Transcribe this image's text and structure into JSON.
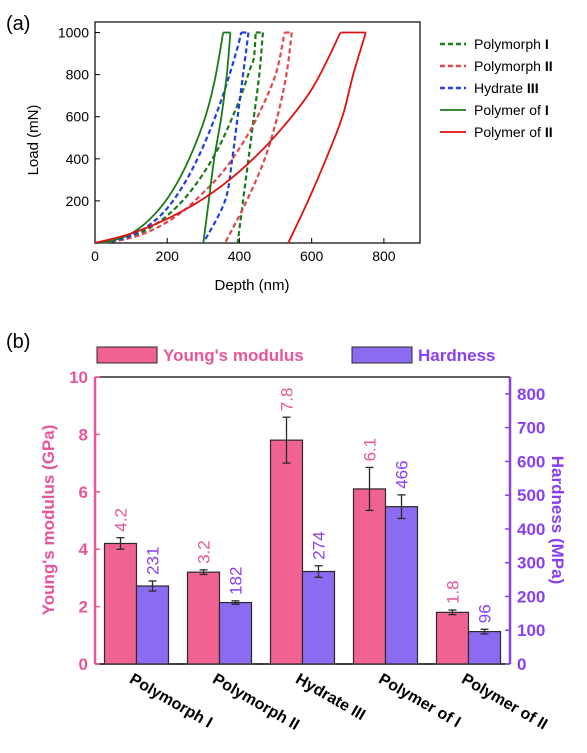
{
  "chart_data": [
    {
      "panel_label": "(a)",
      "type": "line",
      "xlabel": "Depth (nm)",
      "ylabel": "Load (mN)",
      "xlim": [
        0,
        900
      ],
      "ylim": [
        0,
        1050
      ],
      "xticks": [
        0,
        200,
        400,
        600,
        800
      ],
      "yticks": [
        200,
        400,
        600,
        800,
        1000
      ],
      "grid": false,
      "legend_position": "right",
      "series": [
        {
          "name": "Polymorph",
          "name_suffix": "I",
          "color": "#1a7a1a",
          "dash": "dashed",
          "loading": [
            [
              0,
              0
            ],
            [
              50,
              8
            ],
            [
              100,
              30
            ],
            [
              150,
              70
            ],
            [
              200,
              130
            ],
            [
              250,
              215
            ],
            [
              300,
              330
            ],
            [
              350,
              480
            ],
            [
              400,
              680
            ],
            [
              430,
              830
            ],
            [
              440,
              880
            ],
            [
              445,
              1000
            ]
          ],
          "hold": [
            [
              445,
              1000
            ],
            [
              465,
              1000
            ]
          ],
          "unloading": [
            [
              465,
              1000
            ],
            [
              455,
              800
            ],
            [
              440,
              600
            ],
            [
              425,
              400
            ],
            [
              410,
              200
            ],
            [
              395,
              0
            ]
          ]
        },
        {
          "name": "Polymorph",
          "name_suffix": "II",
          "color": "#e0474c",
          "dash": "dashed",
          "loading": [
            [
              0,
              0
            ],
            [
              50,
              8
            ],
            [
              100,
              25
            ],
            [
              150,
              55
            ],
            [
              200,
              100
            ],
            [
              250,
              160
            ],
            [
              300,
              240
            ],
            [
              350,
              330
            ],
            [
              400,
              450
            ],
            [
              450,
              600
            ],
            [
              500,
              800
            ],
            [
              525,
              1000
            ]
          ],
          "hold": [
            [
              525,
              1000
            ],
            [
              545,
              1000
            ]
          ],
          "unloading": [
            [
              545,
              1000
            ],
            [
              530,
              800
            ],
            [
              505,
              600
            ],
            [
              470,
              400
            ],
            [
              420,
              200
            ],
            [
              360,
              0
            ]
          ]
        },
        {
          "name": "Hydrate",
          "name_suffix": "III",
          "color": "#1f3fe0",
          "dash": "dashed",
          "loading": [
            [
              0,
              0
            ],
            [
              50,
              10
            ],
            [
              100,
              35
            ],
            [
              150,
              85
            ],
            [
              200,
              165
            ],
            [
              250,
              290
            ],
            [
              300,
              460
            ],
            [
              350,
              680
            ],
            [
              390,
              900
            ],
            [
              405,
              1000
            ]
          ],
          "hold": [
            [
              405,
              1000
            ],
            [
              425,
              1000
            ]
          ],
          "unloading": [
            [
              425,
              1000
            ],
            [
              410,
              800
            ],
            [
              395,
              600
            ],
            [
              380,
              400
            ],
            [
              360,
              200
            ],
            [
              300,
              0
            ]
          ]
        },
        {
          "name": "Polymer of",
          "name_suffix": "I",
          "color": "#1a7a1a",
          "dash": "solid",
          "loading": [
            [
              0,
              0
            ],
            [
              50,
              12
            ],
            [
              100,
              45
            ],
            [
              150,
              110
            ],
            [
              200,
              210
            ],
            [
              250,
              360
            ],
            [
              300,
              570
            ],
            [
              330,
              760
            ],
            [
              355,
              1000
            ]
          ],
          "hold": [
            [
              355,
              1000
            ],
            [
              375,
              1000
            ]
          ],
          "unloading": [
            [
              375,
              1000
            ],
            [
              365,
              800
            ],
            [
              350,
              600
            ],
            [
              330,
              400
            ],
            [
              315,
              200
            ],
            [
              300,
              0
            ]
          ]
        },
        {
          "name": "Polymer of",
          "name_suffix": "II",
          "color": "#e01010",
          "dash": "solid",
          "loading": [
            [
              0,
              0
            ],
            [
              100,
              45
            ],
            [
              200,
              115
            ],
            [
              300,
              210
            ],
            [
              400,
              340
            ],
            [
              500,
              510
            ],
            [
              600,
              730
            ],
            [
              680,
              1000
            ]
          ],
          "hold": [
            [
              680,
              1000
            ],
            [
              750,
              1000
            ]
          ],
          "unloading": [
            [
              750,
              1000
            ],
            [
              715,
              800
            ],
            [
              685,
              600
            ],
            [
              640,
              400
            ],
            [
              590,
              200
            ],
            [
              535,
              0
            ]
          ]
        }
      ]
    },
    {
      "panel_label": "(b)",
      "type": "bar",
      "categories": [
        "Polymorph I",
        "Polymorph II",
        "Hydrate III",
        "Polymer of I",
        "Polymer of II"
      ],
      "legend_position": "top",
      "grid": false,
      "series": [
        {
          "name": "Young's modulus",
          "axis": "left",
          "color": "#f06292",
          "label_color": "#e8559a",
          "values": [
            4.2,
            3.2,
            7.8,
            6.1,
            1.8
          ],
          "errors": [
            0.2,
            0.08,
            0.8,
            0.75,
            0.08
          ],
          "labels": [
            "4.2",
            "3.2",
            "7.8",
            "6.1",
            "1.8"
          ]
        },
        {
          "name": "Hardness",
          "axis": "right",
          "color": "#8b6cf0",
          "label_color": "#8a3ff0",
          "values": [
            231,
            182,
            274,
            466,
            96
          ],
          "errors": [
            15,
            5,
            17,
            35,
            7
          ],
          "labels": [
            "231",
            "182",
            "274",
            "466",
            "96"
          ]
        }
      ],
      "y_left": {
        "label": "Young's modulus (GPa)",
        "lim": [
          0,
          10
        ],
        "ticks": [
          0,
          2,
          4,
          6,
          8,
          10
        ],
        "color": "#e8559a"
      },
      "y_right": {
        "label": "Hardness (MPa)",
        "lim": [
          0,
          850
        ],
        "ticks": [
          0,
          100,
          200,
          300,
          400,
          500,
          600,
          700,
          800
        ],
        "color": "#8a3ff0"
      }
    }
  ]
}
